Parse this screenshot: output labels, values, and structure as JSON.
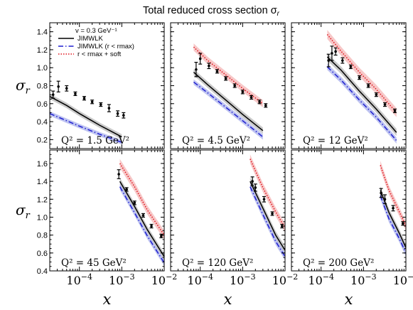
{
  "figure": {
    "title": "Total reduced cross section σ",
    "title_sub": "r"
  },
  "axes_text": {
    "ylabel": "σ",
    "ylabel_sub": "r",
    "xlabel": "x"
  },
  "legend": {
    "entries": [
      {
        "label": "v = 0.3 GeV⁻¹",
        "style": "none"
      },
      {
        "label": "JIMWLK",
        "style": "solid-black"
      },
      {
        "label": "JIMWLK (r < rmax)",
        "style": "dashdot-blue"
      },
      {
        "label": "r < rmax + soft",
        "style": "dotted-red"
      }
    ]
  },
  "colors": {
    "jimwlk": "#000000",
    "jimwlk_band": "#b8b8b8",
    "rmax": "#1f1fcf",
    "rmax_band": "#aab0ec",
    "soft": "#e0141e",
    "soft_band": "#f4b5b5",
    "data": "#000000"
  },
  "chart_data": {
    "type": "line",
    "x_scale": "log",
    "xlim": [
      2e-05,
      0.01
    ],
    "x_ticks": [
      {
        "v": 0.0001,
        "label": "10",
        "exp": "−4"
      },
      {
        "v": 0.001,
        "label": "10",
        "exp": "−3"
      },
      {
        "v": 0.01,
        "label": "10",
        "exp": "−2"
      }
    ],
    "rows": [
      {
        "ylim": [
          0.1,
          1.5
        ],
        "yticks": [
          "0.2",
          "0.4",
          "0.6",
          "0.8",
          "1.0",
          "1.2",
          "1.4"
        ]
      },
      {
        "ylim": [
          0.4,
          1.75
        ],
        "yticks": [
          "0.4",
          "0.6",
          "0.8",
          "1.0",
          "1.2",
          "1.4",
          "1.6"
        ]
      }
    ],
    "panels": [
      {
        "row": 0,
        "q2_label": "Q² = 1.5 GeV²",
        "jimwlk": {
          "x": [
            2e-05,
            5e-05,
            0.0001,
            0.0003,
            0.001
          ],
          "y": [
            0.68,
            0.58,
            0.49,
            0.36,
            0.23
          ],
          "band": 0.03
        },
        "rmax": {
          "x": [
            2e-05,
            5e-05,
            0.0001,
            0.0003,
            0.001
          ],
          "y": [
            0.49,
            0.41,
            0.35,
            0.26,
            0.17
          ],
          "band": 0.025
        },
        "data": [
          {
            "x": 2.4e-05,
            "y": 0.7,
            "err": 0.04
          },
          {
            "x": 3.2e-05,
            "y": 0.79,
            "err": 0.06
          },
          {
            "x": 5e-05,
            "y": 0.77,
            "err": 0.03
          },
          {
            "x": 8e-05,
            "y": 0.71,
            "err": 0.02
          },
          {
            "x": 0.00013,
            "y": 0.66,
            "err": 0.02
          },
          {
            "x": 0.0002,
            "y": 0.62,
            "err": 0.02
          },
          {
            "x": 0.00032,
            "y": 0.59,
            "err": 0.02
          },
          {
            "x": 0.0005,
            "y": 0.55,
            "err": 0.04
          },
          {
            "x": 0.0008,
            "y": 0.49,
            "err": 0.03
          },
          {
            "x": 0.0011,
            "y": 0.47,
            "err": 0.03
          }
        ]
      },
      {
        "row": 0,
        "q2_label": "Q² = 4.5 GeV²",
        "jimwlk": {
          "x": [
            7e-05,
            0.00015,
            0.0004,
            0.001,
            0.003
          ],
          "y": [
            0.95,
            0.81,
            0.64,
            0.48,
            0.3
          ],
          "band": 0.035
        },
        "rmax": {
          "x": [
            7e-05,
            0.00015,
            0.0004,
            0.001,
            0.003
          ],
          "y": [
            0.84,
            0.72,
            0.56,
            0.41,
            0.23
          ],
          "band": 0.03
        },
        "soft": {
          "x": [
            7e-05,
            0.00015,
            0.0004,
            0.001,
            0.003
          ],
          "y": [
            1.23,
            1.08,
            0.92,
            0.77,
            0.6
          ],
          "band": 0.04
        },
        "data": [
          {
            "x": 8e-05,
            "y": 0.98,
            "err": 0.08
          },
          {
            "x": 0.0001,
            "y": 1.1,
            "err": 0.06
          },
          {
            "x": 0.00016,
            "y": 1.02,
            "err": 0.03
          },
          {
            "x": 0.00025,
            "y": 0.96,
            "err": 0.02
          },
          {
            "x": 0.0004,
            "y": 0.88,
            "err": 0.02
          },
          {
            "x": 0.00065,
            "y": 0.8,
            "err": 0.02
          },
          {
            "x": 0.001,
            "y": 0.73,
            "err": 0.02
          },
          {
            "x": 0.0016,
            "y": 0.67,
            "err": 0.02
          },
          {
            "x": 0.0025,
            "y": 0.62,
            "err": 0.02
          },
          {
            "x": 0.0035,
            "y": 0.58,
            "err": 0.02
          }
        ]
      },
      {
        "row": 0,
        "q2_label": "Q² = 12 GeV²",
        "jimwlk": {
          "x": [
            0.00014,
            0.0003,
            0.0008,
            0.002,
            0.006
          ],
          "y": [
            1.12,
            0.97,
            0.74,
            0.54,
            0.28
          ],
          "band": 0.04
        },
        "rmax": {
          "x": [
            0.00014,
            0.0003,
            0.0008,
            0.002,
            0.006
          ],
          "y": [
            1.01,
            0.86,
            0.64,
            0.45,
            0.19
          ],
          "band": 0.035
        },
        "soft": {
          "x": [
            0.00014,
            0.0003,
            0.0008,
            0.002,
            0.006
          ],
          "y": [
            1.37,
            1.18,
            0.95,
            0.76,
            0.5
          ],
          "band": 0.05
        },
        "data": [
          {
            "x": 0.00015,
            "y": 1.08,
            "err": 0.07
          },
          {
            "x": 0.00018,
            "y": 1.16,
            "err": 0.08
          },
          {
            "x": 0.00022,
            "y": 1.18,
            "err": 0.04
          },
          {
            "x": 0.00032,
            "y": 1.08,
            "err": 0.03
          },
          {
            "x": 0.0005,
            "y": 1.01,
            "err": 0.02
          },
          {
            "x": 0.0008,
            "y": 0.89,
            "err": 0.02
          },
          {
            "x": 0.0013,
            "y": 0.8,
            "err": 0.02
          },
          {
            "x": 0.002,
            "y": 0.7,
            "err": 0.02
          },
          {
            "x": 0.0032,
            "y": 0.59,
            "err": 0.02
          },
          {
            "x": 0.0055,
            "y": 0.52,
            "err": 0.02
          }
        ]
      },
      {
        "row": 1,
        "q2_label": "Q² = 45 GeV²",
        "jimwlk": {
          "x": [
            0.0009,
            0.002,
            0.004,
            0.01
          ],
          "y": [
            1.4,
            1.12,
            0.86,
            0.56
          ],
          "band": 0.04
        },
        "rmax": {
          "x": [
            0.0009,
            0.002,
            0.004,
            0.01
          ],
          "y": [
            1.34,
            1.05,
            0.79,
            0.49
          ],
          "band": 0.035
        },
        "soft": {
          "x": [
            0.0009,
            0.002,
            0.004,
            0.01
          ],
          "y": [
            1.6,
            1.34,
            1.08,
            0.8
          ],
          "band": 0.05
        },
        "data": [
          {
            "x": 0.00085,
            "y": 1.48,
            "err": 0.05
          },
          {
            "x": 0.0013,
            "y": 1.31,
            "err": 0.02
          },
          {
            "x": 0.002,
            "y": 1.16,
            "err": 0.02
          },
          {
            "x": 0.0032,
            "y": 1.02,
            "err": 0.02
          },
          {
            "x": 0.005,
            "y": 0.9,
            "err": 0.02
          },
          {
            "x": 0.0085,
            "y": 0.79,
            "err": 0.02
          }
        ]
      },
      {
        "row": 1,
        "q2_label": "Q² = 120 GeV²",
        "jimwlk": {
          "x": [
            0.0015,
            0.003,
            0.006,
            0.01
          ],
          "y": [
            1.4,
            1.1,
            0.8,
            0.63
          ],
          "band": 0.045
        },
        "rmax": {
          "x": [
            0.0015,
            0.003,
            0.006,
            0.01
          ],
          "y": [
            1.34,
            1.03,
            0.73,
            0.56
          ],
          "band": 0.04
        },
        "soft": {
          "x": [
            0.0015,
            0.003,
            0.006,
            0.01
          ],
          "y": [
            1.65,
            1.33,
            1.06,
            0.88
          ],
          "band": 0.05
        },
        "data": [
          {
            "x": 0.0017,
            "y": 1.4,
            "err": 0.05
          },
          {
            "x": 0.002,
            "y": 1.33,
            "err": 0.04
          },
          {
            "x": 0.0032,
            "y": 1.2,
            "err": 0.03
          },
          {
            "x": 0.005,
            "y": 1.04,
            "err": 0.02
          },
          {
            "x": 0.0085,
            "y": 0.9,
            "err": 0.02
          }
        ]
      },
      {
        "row": 1,
        "q2_label": "Q² = 200 GeV²",
        "jimwlk": {
          "x": [
            0.0025,
            0.004,
            0.007,
            0.01
          ],
          "y": [
            1.3,
            1.05,
            0.82,
            0.66
          ],
          "band": 0.045
        },
        "rmax": {
          "x": [
            0.0025,
            0.004,
            0.007,
            0.01
          ],
          "y": [
            1.24,
            0.98,
            0.76,
            0.6
          ],
          "band": 0.04
        },
        "soft": {
          "x": [
            0.0025,
            0.004,
            0.007,
            0.01
          ],
          "y": [
            1.58,
            1.3,
            1.06,
            0.9
          ],
          "band": 0.05
        },
        "data": [
          {
            "x": 0.0026,
            "y": 1.27,
            "err": 0.05
          },
          {
            "x": 0.0032,
            "y": 1.2,
            "err": 0.05
          },
          {
            "x": 0.005,
            "y": 1.1,
            "err": 0.03
          },
          {
            "x": 0.0085,
            "y": 0.93,
            "err": 0.02
          }
        ]
      }
    ]
  }
}
